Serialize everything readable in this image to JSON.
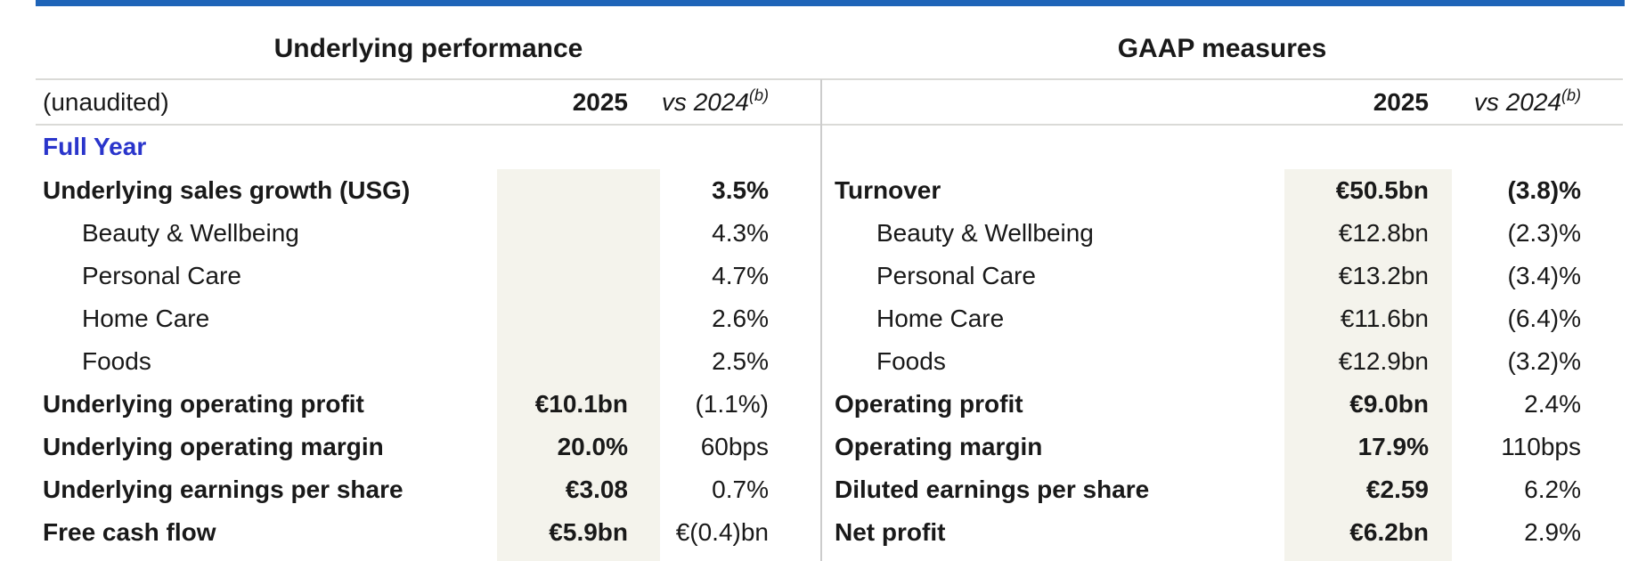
{
  "colors": {
    "accent_bar_blue": "#1e64b8",
    "full_year_blue": "#2a35cb",
    "highlight_band_cream": "#f4f3ec",
    "rule_gray": "#dadad7",
    "divider_gray": "#cccccc",
    "text": "#191919"
  },
  "left": {
    "title": "Underlying performance",
    "header": {
      "label": "(unaudited)",
      "y2025": "2025",
      "vs": "vs 2024",
      "vs_sup": "(b)"
    },
    "group_label": "Full Year",
    "rows": [
      {
        "label": "Underlying sales growth (USG)",
        "v2025": "",
        "vs2024": "3.5%"
      },
      {
        "label": "Beauty & Wellbeing",
        "v2025": "",
        "vs2024": "4.3%"
      },
      {
        "label": "Personal Care",
        "v2025": "",
        "vs2024": "4.7%"
      },
      {
        "label": "Home Care",
        "v2025": "",
        "vs2024": "2.6%"
      },
      {
        "label": "Foods",
        "v2025": "",
        "vs2024": "2.5%"
      },
      {
        "label": "Underlying operating profit",
        "v2025": "€10.1bn",
        "vs2024": "(1.1%)"
      },
      {
        "label": "Underlying operating margin",
        "v2025": "20.0%",
        "vs2024": "60bps"
      },
      {
        "label": "Underlying earnings per share",
        "v2025": "€3.08",
        "vs2024": "0.7%"
      },
      {
        "label": "Free cash flow",
        "v2025": "€5.9bn",
        "vs2024": "€(0.4)bn"
      }
    ]
  },
  "right": {
    "title": "GAAP measures",
    "header": {
      "label": "",
      "y2025": "2025",
      "vs": "vs 2024",
      "vs_sup": "(b)"
    },
    "rows": [
      {
        "label": "Turnover",
        "v2025": "€50.5bn",
        "vs2024": "(3.8)%"
      },
      {
        "label": "Beauty & Wellbeing",
        "v2025": "€12.8bn",
        "vs2024": "(2.3)%"
      },
      {
        "label": "Personal Care",
        "v2025": "€13.2bn",
        "vs2024": "(3.4)%"
      },
      {
        "label": "Home Care",
        "v2025": "€11.6bn",
        "vs2024": "(6.4)%"
      },
      {
        "label": "Foods",
        "v2025": "€12.9bn",
        "vs2024": "(3.2)%"
      },
      {
        "label": "Operating profit",
        "v2025": "€9.0bn",
        "vs2024": "2.4%"
      },
      {
        "label": "Operating margin",
        "v2025": "17.9%",
        "vs2024": "110bps"
      },
      {
        "label": "Diluted earnings per share",
        "v2025": "€2.59",
        "vs2024": "6.2%"
      },
      {
        "label": "Net profit",
        "v2025": "€6.2bn",
        "vs2024": "2.9%"
      }
    ]
  }
}
